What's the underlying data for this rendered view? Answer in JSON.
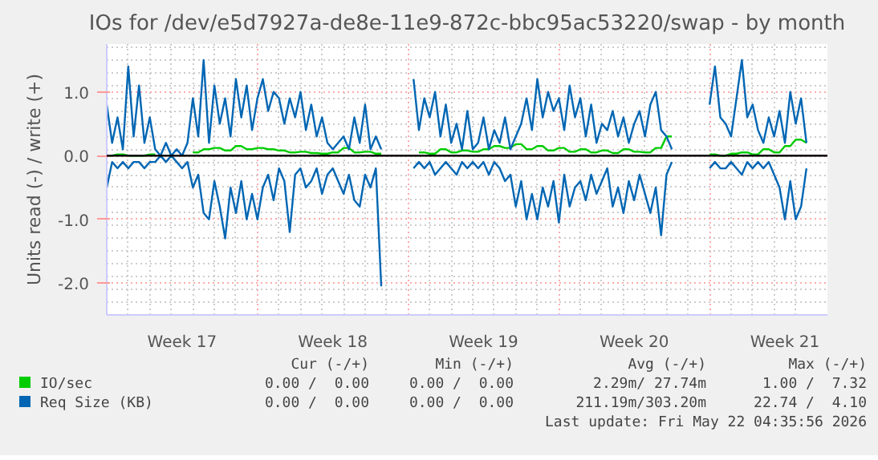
{
  "chart_data": {
    "type": "line",
    "title": "IOs for /dev/e5d7927a-de8e-11e9-872c-bbc95ac53220/swap - by month",
    "ylabel": "Units read (-) / write (+)",
    "ylim": [
      -2.5,
      1.75
    ],
    "yticks": [
      {
        "value": -2,
        "label": "-2.0"
      },
      {
        "value": -1,
        "label": "-1.0"
      },
      {
        "value": 0,
        "label": "0.0"
      },
      {
        "value": 1,
        "label": "1.0"
      }
    ],
    "grid": true,
    "legend": "bottom",
    "ref_lines": [
      {
        "axis": "y",
        "value": 0,
        "color": "#000000"
      }
    ],
    "categories": [
      null,
      null,
      null,
      null,
      null,
      null,
      null,
      null,
      null,
      null,
      null,
      null,
      null,
      null,
      "Week 17",
      null,
      null,
      null,
      null,
      null,
      null,
      null,
      null,
      null,
      null,
      null,
      null,
      null,
      null,
      null,
      null,
      null,
      null,
      null,
      null,
      null,
      null,
      null,
      null,
      null,
      null,
      null,
      "Week 18",
      null,
      null,
      null,
      null,
      null,
      null,
      null,
      null,
      null,
      null,
      null,
      null,
      null,
      null,
      null,
      null,
      null,
      null,
      null,
      null,
      null,
      null,
      null,
      null,
      null,
      null,
      null,
      "Week 19",
      null,
      null,
      null,
      null,
      null,
      null,
      null,
      null,
      null,
      null,
      null,
      null,
      null,
      null,
      null,
      null,
      null,
      null,
      null,
      null,
      null,
      null,
      null,
      null,
      null,
      null,
      null,
      "Week 20",
      null,
      null,
      null,
      null,
      null,
      null,
      null,
      null,
      null,
      null,
      null,
      null,
      null,
      null,
      null,
      null,
      null,
      null,
      null,
      null,
      null,
      null,
      null,
      null,
      null,
      null,
      null,
      "Week 21",
      null,
      null,
      null,
      null
    ],
    "series": [
      {
        "name": "IO/sec",
        "color": "#00cc00",
        "values": [
          0.0,
          0.0,
          0.02,
          0.02,
          0.0,
          0.0,
          0.0,
          0.0,
          0.02,
          0.02,
          null,
          null,
          null,
          null,
          null,
          null,
          0.05,
          0.05,
          0.1,
          0.1,
          0.12,
          0.12,
          0.08,
          0.08,
          0.15,
          0.15,
          0.1,
          0.1,
          0.12,
          0.12,
          0.1,
          0.1,
          0.08,
          0.08,
          0.05,
          0.05,
          0.06,
          0.06,
          0.04,
          0.04,
          0.03,
          0.03,
          0.05,
          0.05,
          0.12,
          0.12,
          0.05,
          0.05,
          0.06,
          0.06,
          0.03,
          0.03,
          null,
          null,
          null,
          null,
          null,
          null,
          0.05,
          0.05,
          0.03,
          0.03,
          0.1,
          0.1,
          0.05,
          0.05,
          0.08,
          0.08,
          0.06,
          0.06,
          0.1,
          0.1,
          0.15,
          0.15,
          0.12,
          0.12,
          0.18,
          0.18,
          0.1,
          0.1,
          0.15,
          0.15,
          0.08,
          0.08,
          0.12,
          0.12,
          0.06,
          0.06,
          0.1,
          0.1,
          0.05,
          0.05,
          0.08,
          0.08,
          0.04,
          0.04,
          0.1,
          0.1,
          0.06,
          0.06,
          0.05,
          0.05,
          0.12,
          0.12,
          0.3,
          0.3,
          null,
          null,
          null,
          null,
          null,
          null,
          0.02,
          0.02,
          0.0,
          0.0,
          0.03,
          0.03,
          0.05,
          0.05,
          0.02,
          0.02,
          0.1,
          0.1,
          0.05,
          0.05,
          0.15,
          0.15,
          0.25,
          0.25,
          0.2
        ]
      },
      {
        "name": "Req Size (KB)",
        "color": "#0066b3",
        "values": [
          0.8,
          0.2,
          0.6,
          0.1,
          1.4,
          0.3,
          1.1,
          0.2,
          0.6,
          0.1,
          0.0,
          0.2,
          0.0,
          0.1,
          0.0,
          0.2,
          0.9,
          0.3,
          1.5,
          0.2,
          1.1,
          0.5,
          0.9,
          0.3,
          1.2,
          0.6,
          1.1,
          0.4,
          0.9,
          1.2,
          0.7,
          1.0,
          0.9,
          0.5,
          0.9,
          0.6,
          1.0,
          0.4,
          0.8,
          0.3,
          0.6,
          0.2,
          0.1,
          0.2,
          0.3,
          0.1,
          0.6,
          0.2,
          0.8,
          0.1,
          0.3,
          0.1,
          null,
          null,
          null,
          null,
          null,
          1.2,
          0.4,
          0.9,
          0.6,
          1.0,
          0.3,
          0.8,
          0.2,
          0.5,
          0.1,
          0.7,
          0.1,
          0.2,
          0.6,
          0.1,
          0.4,
          0.2,
          0.6,
          0.1,
          0.3,
          0.5,
          0.9,
          0.4,
          1.2,
          0.6,
          1.0,
          0.7,
          0.9,
          0.4,
          1.1,
          0.6,
          0.9,
          0.3,
          0.8,
          0.2,
          0.5,
          0.4,
          0.7,
          0.3,
          0.6,
          0.2,
          0.5,
          0.7,
          0.3,
          0.8,
          1.0,
          0.4,
          0.3,
          0.1,
          null,
          null,
          null,
          null,
          null,
          null,
          0.8,
          1.4,
          0.6,
          0.5,
          0.3,
          0.9,
          1.5,
          0.6,
          0.8,
          0.4,
          0.2,
          0.6,
          0.3,
          0.7,
          0.2,
          1.0,
          0.5,
          0.9,
          0.2
        ]
      },
      {
        "color": "#0066b3",
        "values": [
          -0.5,
          -0.1,
          -0.2,
          -0.1,
          -0.2,
          -0.1,
          -0.1,
          -0.2,
          -0.1,
          -0.1,
          0.0,
          -0.1,
          0.0,
          -0.1,
          -0.2,
          -0.1,
          -0.5,
          -0.3,
          -0.9,
          -1.0,
          -0.4,
          -0.8,
          -1.3,
          -0.5,
          -0.9,
          -0.4,
          -1.0,
          -0.6,
          -1.0,
          -0.5,
          -0.3,
          -0.7,
          -0.2,
          -0.4,
          -1.2,
          -0.3,
          -0.2,
          -0.5,
          -0.4,
          -0.2,
          -0.6,
          -0.3,
          -0.2,
          -0.4,
          -0.6,
          -0.3,
          -0.7,
          -0.8,
          -0.3,
          -0.5,
          -0.2,
          -2.05,
          null,
          null,
          null,
          null,
          null,
          -0.2,
          -0.1,
          -0.2,
          -0.1,
          -0.3,
          -0.2,
          -0.1,
          -0.2,
          -0.3,
          -0.1,
          -0.2,
          -0.1,
          -0.2,
          -0.1,
          -0.3,
          -0.1,
          -0.2,
          -0.4,
          -0.3,
          -0.8,
          -0.4,
          -1.0,
          -0.6,
          -1.0,
          -0.5,
          -0.8,
          -0.4,
          -1.05,
          -0.3,
          -0.8,
          -0.5,
          -0.4,
          -0.7,
          -0.3,
          -0.6,
          -0.4,
          -0.2,
          -0.8,
          -0.5,
          -0.9,
          -0.4,
          -0.7,
          -0.3,
          -0.6,
          -0.9,
          -0.5,
          -1.25,
          -0.3,
          -0.1,
          null,
          null,
          null,
          null,
          null,
          null,
          -0.2,
          -0.1,
          -0.2,
          -0.2,
          -0.1,
          -0.2,
          -0.3,
          -0.1,
          -0.2,
          -0.1,
          -0.2,
          -0.1,
          -0.3,
          -0.5,
          -1.0,
          -0.4,
          -1.0,
          -0.8,
          -0.2
        ]
      }
    ],
    "annotations": [
      "Cur (-/+)",
      "Min (-/+)",
      "Avg (-/+)",
      "Max (-/+)",
      "0.00 /  0.00",
      "0.00 /  0.00",
      "2.29m/ 27.74m",
      "1.00 /  7.32",
      "0.00 /  0.00",
      "0.00 /  0.00",
      "211.19m/303.20m",
      "22.74 /  4.10",
      "Last update: Fri May 22 04:35:56 2026"
    ]
  }
}
